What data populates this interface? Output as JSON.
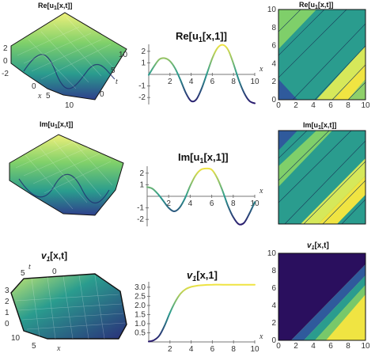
{
  "chart_data": [
    {
      "type": "surface3d",
      "title_parts": [
        "Re[u",
        "1",
        "[x,t]]"
      ],
      "xlabel": "x",
      "ylabel": "t",
      "x_ticks": [
        0,
        5,
        10
      ],
      "t_ticks": [
        0,
        5,
        10
      ],
      "z_ticks": [
        -2,
        0,
        2
      ],
      "zlim": [
        -2.5,
        2.5
      ]
    },
    {
      "type": "line",
      "title_parts": [
        "Re[u",
        "1",
        "[x,1]]"
      ],
      "xlabel": "x",
      "xlim": [
        0,
        10
      ],
      "ylim": [
        -2.6,
        2.6
      ],
      "x_ticks": [
        2,
        4,
        6,
        8,
        10
      ],
      "y_ticks": [
        -2,
        -1,
        1,
        2
      ],
      "series": [
        {
          "x": [
            0,
            0.5,
            1,
            1.5,
            2,
            2.5,
            3,
            3.5,
            4,
            4.5,
            5,
            5.5,
            6,
            6.5,
            7,
            7.5,
            8,
            8.5,
            9,
            9.5,
            10
          ],
          "y": [
            -0.05,
            0.7,
            1.3,
            1.4,
            1.15,
            0.5,
            -0.5,
            -1.6,
            -2.3,
            -2.15,
            -1.2,
            0.1,
            1.4,
            2.3,
            2.55,
            2.1,
            0.9,
            -0.5,
            -1.6,
            -2.3,
            -2.5
          ]
        }
      ]
    },
    {
      "type": "heatmap",
      "title_parts": [
        "Re[u",
        "1",
        "[x,t]]"
      ],
      "x_ticks": [
        0,
        2,
        4,
        6,
        8,
        10
      ],
      "y_ticks": [
        0,
        2,
        4,
        6,
        8,
        10
      ],
      "xlim": [
        0,
        10
      ],
      "ylim": [
        0,
        10
      ]
    },
    {
      "type": "surface3d",
      "title_parts": [
        "Im[u",
        "1",
        "[x,t]]"
      ],
      "xlabel": "",
      "ylabel": "",
      "x_ticks": [],
      "t_ticks": [],
      "z_ticks": [],
      "zlim": [
        -2.5,
        2.5
      ]
    },
    {
      "type": "line",
      "title_parts": [
        "Im[u",
        "1",
        "[x,1]]"
      ],
      "xlabel": "x",
      "xlim": [
        0,
        10
      ],
      "ylim": [
        -2.6,
        2.6
      ],
      "x_ticks": [
        2,
        4,
        6,
        8,
        10
      ],
      "y_ticks": [
        -2,
        -1,
        1,
        2
      ],
      "series": [
        {
          "x": [
            0,
            0.5,
            1,
            1.5,
            2,
            2.5,
            3,
            3.5,
            4,
            4.5,
            5,
            5.5,
            6,
            6.5,
            7,
            7.5,
            8,
            8.5,
            9,
            9.5,
            10
          ],
          "y": [
            0.8,
            0.65,
            0.2,
            -0.4,
            -1.0,
            -1.3,
            -1.0,
            -0.2,
            0.9,
            1.8,
            2.3,
            2.4,
            2.3,
            1.6,
            0.5,
            -0.8,
            -1.8,
            -2.4,
            -2.3,
            -1.5,
            -0.5
          ]
        }
      ]
    },
    {
      "type": "heatmap",
      "title_parts": [
        "Im[u",
        "1",
        "[x,t]]"
      ],
      "x_ticks": [],
      "y_ticks": [],
      "xlim": [
        0,
        10
      ],
      "ylim": [
        0,
        10
      ]
    },
    {
      "type": "surface3d",
      "title_parts": [
        "v",
        "1",
        "[x,t]"
      ],
      "xlabel": "x",
      "ylabel": "t",
      "x_ticks": [
        5,
        10
      ],
      "t_ticks": [
        0,
        5
      ],
      "z_ticks": [
        0,
        1,
        2,
        3
      ],
      "zlim": [
        0,
        3.3
      ]
    },
    {
      "type": "line",
      "title_parts": [
        "v",
        "1",
        "[x,1]"
      ],
      "xlabel": "x",
      "xlim": [
        0,
        10
      ],
      "ylim": [
        0,
        3.3
      ],
      "x_ticks": [
        2,
        4,
        6,
        8,
        10
      ],
      "y_ticks": [
        0.5,
        1.0,
        1.5,
        2.0,
        2.5,
        3.0
      ],
      "y_tick_labels": [
        "0.5",
        "1.0",
        "1.5",
        "2.0",
        "2.5",
        "3.0"
      ],
      "series": [
        {
          "x": [
            0,
            0.5,
            1,
            1.5,
            2,
            2.5,
            3,
            3.5,
            4,
            4.5,
            5,
            5.5,
            6,
            7,
            8,
            9,
            10
          ],
          "y": [
            0.02,
            0.1,
            0.35,
            0.9,
            1.6,
            2.2,
            2.65,
            2.9,
            3.02,
            3.08,
            3.11,
            3.13,
            3.14,
            3.14,
            3.14,
            3.14,
            3.14
          ]
        }
      ]
    },
    {
      "type": "heatmap",
      "title_parts": [
        "v",
        "1",
        "[x,t]"
      ],
      "x_ticks": [
        0,
        2,
        4,
        6,
        8,
        10
      ],
      "y_ticks": [
        0,
        2,
        4,
        6,
        8,
        10
      ],
      "xlim": [
        0,
        10
      ],
      "ylim": [
        0,
        10
      ]
    }
  ],
  "palette": {
    "deep": "#2a0f5e",
    "blue": "#2f5a9c",
    "teal": "#2a9c8e",
    "green": "#78c86a",
    "yellow": "#f0e442",
    "axis": "#555555",
    "frame": "#111111"
  }
}
